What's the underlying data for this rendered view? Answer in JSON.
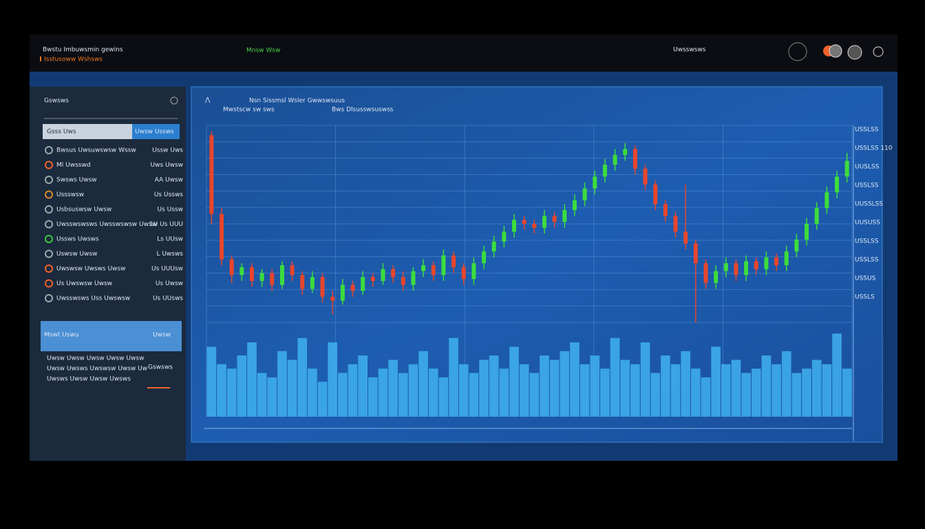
{
  "header": {
    "title": "Bwstu Imbuwsmin gewins",
    "subtitle": "Isstusoww Wshsws",
    "nav": "Mnsw  Wsw",
    "account": "Uwsswsws"
  },
  "sidebar": {
    "heading": "Gswsws",
    "search": "Gsss Uws",
    "search_button": "Uwsw Ussws",
    "items": [
      {
        "name": "Bwsus Uwsuwswsw Wssw",
        "value": "Ussw Uws"
      },
      {
        "name": "Ml Uwsswd",
        "value": "Uws Uwsw"
      },
      {
        "name": "Swsws Uwsw",
        "value": "AA Uwsw"
      },
      {
        "name": "Ussswsw",
        "value": "Us Ussws"
      },
      {
        "name": "Usbsuswsw Uwsw",
        "value": "Us Ussw"
      },
      {
        "name": "Uwsswswsws Uwsswswsw Uwsw",
        "value": "1U Us UUU"
      },
      {
        "name": "Ussws Uwsws",
        "value": "Ls UUsw"
      },
      {
        "name": "Uswsw Uwsw",
        "value": "L Uwsws"
      },
      {
        "name": "Uwswsw Uwsws Uwsw",
        "value": "Us UUUsw"
      },
      {
        "name": "Us Uwswsw Uwsw",
        "value": "Us Uwsw"
      },
      {
        "name": "Uwsswsws Uss Uwswsw",
        "value": "Us UUsws"
      }
    ],
    "panel_title": "Mswt Uswu",
    "panel_value": "Uwsw",
    "panel_lines": [
      "Uwsw Uwsw Uwsw Uwsw Uwsw",
      "Uwsw Uwsws Uwswsw Uwsw Uw",
      "Uwsws Uwsw Uwsw Uwsws"
    ],
    "panel_label": "Gswsws"
  },
  "chart_data": {
    "type": "candlestick",
    "title": "Nsn Sissmsl Wsler Gwwswsuus",
    "subtitle": "Mwstscw sw sws",
    "legend": "Bws  Dlsusswsuswss",
    "up_color": "#3ddc3d",
    "down_color": "#e8452c",
    "volume_color": "#3fb2ee",
    "grid": true,
    "ylim": [
      0,
      100
    ],
    "volume_lim": [
      0,
      100
    ],
    "axis_labels": [
      "USSLSS",
      "USSLSS 110",
      "UUSLSS",
      "USSLSS",
      "UUSSLSS",
      "UUSUSS",
      "USSLSS",
      "USSLSS",
      "USSUS",
      "USSLS"
    ],
    "open": [
      95,
      55,
      32,
      24,
      28,
      21,
      25,
      19,
      29,
      24,
      17,
      23,
      13,
      11,
      19,
      16,
      23,
      21,
      27,
      23,
      19,
      26,
      29,
      24,
      34,
      28,
      22,
      30,
      36,
      41,
      46,
      52,
      50,
      48,
      54,
      51,
      57,
      62,
      68,
      74,
      80,
      85,
      88,
      78,
      70,
      60,
      54,
      46,
      40,
      30,
      20,
      26,
      30,
      24,
      31,
      27,
      33,
      29,
      36,
      42,
      50,
      58,
      66,
      74
    ],
    "high": [
      97,
      58,
      34,
      30,
      30,
      27,
      27,
      31,
      31,
      26,
      26,
      25,
      16,
      22,
      21,
      26,
      25,
      30,
      29,
      26,
      28,
      32,
      31,
      37,
      36,
      30,
      33,
      39,
      44,
      49,
      55,
      54,
      52,
      57,
      56,
      60,
      65,
      71,
      77,
      83,
      88,
      91,
      90,
      80,
      72,
      62,
      56,
      70,
      42,
      32,
      29,
      33,
      32,
      34,
      33,
      36,
      35,
      39,
      45,
      53,
      61,
      69,
      77,
      86
    ],
    "low": [
      50,
      29,
      20,
      21,
      18,
      18,
      16,
      17,
      21,
      14,
      15,
      10,
      4,
      9,
      13,
      14,
      18,
      19,
      20,
      16,
      16,
      23,
      21,
      21,
      25,
      19,
      19,
      27,
      33,
      38,
      43,
      47,
      45,
      45,
      48,
      48,
      54,
      59,
      65,
      71,
      77,
      82,
      75,
      67,
      57,
      51,
      43,
      37,
      0,
      17,
      17,
      23,
      21,
      21,
      24,
      24,
      26,
      26,
      33,
      39,
      47,
      55,
      63,
      71
    ],
    "close": [
      55,
      32,
      24,
      28,
      21,
      25,
      19,
      29,
      24,
      17,
      23,
      13,
      11,
      19,
      16,
      23,
      21,
      27,
      23,
      19,
      26,
      29,
      24,
      34,
      28,
      22,
      30,
      36,
      41,
      46,
      52,
      50,
      48,
      54,
      51,
      57,
      62,
      68,
      74,
      80,
      85,
      88,
      78,
      70,
      60,
      54,
      46,
      40,
      30,
      20,
      26,
      30,
      24,
      31,
      27,
      33,
      29,
      36,
      42,
      50,
      58,
      66,
      74,
      82
    ],
    "volume": [
      80,
      60,
      55,
      70,
      85,
      50,
      45,
      75,
      65,
      90,
      55,
      40,
      85,
      50,
      60,
      70,
      45,
      55,
      65,
      50,
      60,
      75,
      55,
      45,
      90,
      60,
      50,
      65,
      70,
      55,
      80,
      60,
      50,
      70,
      65,
      75,
      85,
      60,
      70,
      55,
      90,
      65,
      60,
      85,
      50,
      70,
      60,
      75,
      55,
      45,
      80,
      60,
      65,
      50,
      55,
      70,
      60,
      75,
      50,
      55,
      65,
      60,
      95,
      55
    ]
  }
}
